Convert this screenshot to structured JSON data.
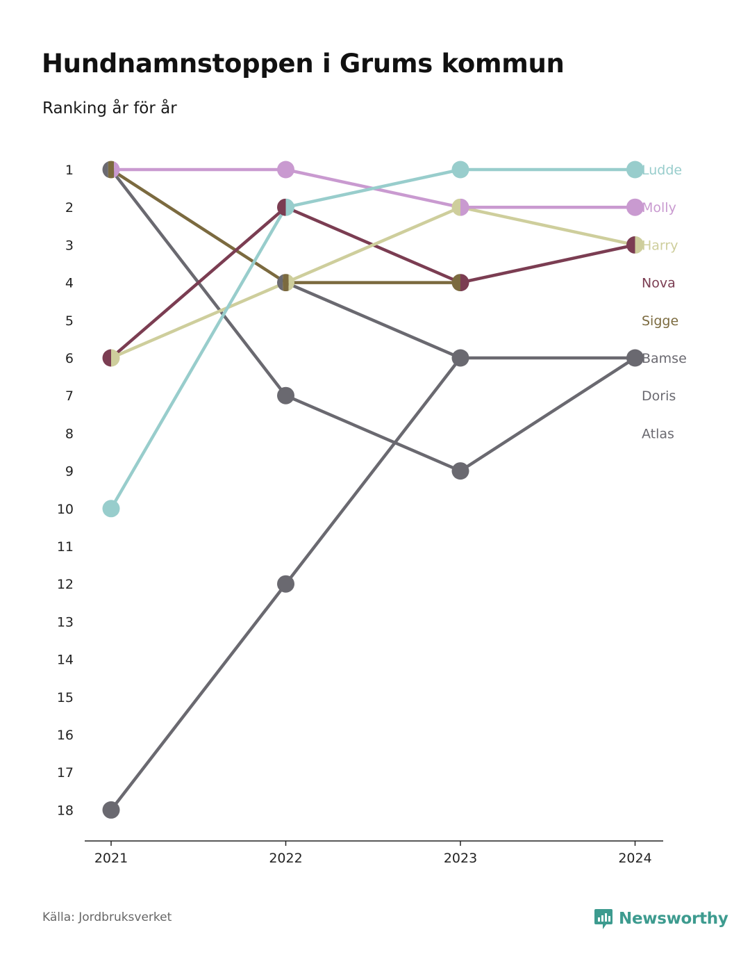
{
  "title": "Hundnamnstoppen i Grums kommun",
  "subtitle": "Ranking år för år",
  "source": "Källa: Jordbruksverket",
  "brand": {
    "name": "Newsworthy",
    "icon": "newsworthy-logo-icon",
    "color": "#3d9b8f"
  },
  "chart_data": {
    "type": "line",
    "x": [
      "2021",
      "2022",
      "2023",
      "2024"
    ],
    "y_ticks": [
      "1",
      "2",
      "3",
      "4",
      "5",
      "6",
      "7",
      "8",
      "9",
      "10",
      "11",
      "12",
      "13",
      "14",
      "15",
      "16",
      "17",
      "18"
    ],
    "ylim": [
      1,
      18
    ],
    "y_inverted": true,
    "grid": false,
    "legend": "right, end labels",
    "series": [
      {
        "name": "Atlas",
        "color": "#6a6970",
        "values": [
          18,
          12,
          6,
          6
        ]
      },
      {
        "name": "Doris",
        "color": "#6a6970",
        "values": [
          1,
          7,
          9,
          6
        ]
      },
      {
        "name": "Bamse",
        "color": "#6a6970",
        "values": [
          null,
          4,
          6,
          null
        ]
      },
      {
        "name": "Sigge",
        "color": "#7b6a3f",
        "values": [
          1,
          4,
          4,
          null
        ]
      },
      {
        "name": "Nova",
        "color": "#7b3d52",
        "values": [
          6,
          2,
          4,
          3
        ]
      },
      {
        "name": "Harry",
        "color": "#cece9c",
        "values": [
          6,
          4,
          2,
          3
        ]
      },
      {
        "name": "Molly",
        "color": "#c99ad0",
        "values": [
          1,
          1,
          2,
          2
        ]
      },
      {
        "name": "Ludde",
        "color": "#98cdcc",
        "values": [
          10,
          2,
          1,
          1
        ]
      }
    ],
    "end_labels": [
      {
        "name": "Ludde",
        "rank": 1,
        "color": "#98cdcc"
      },
      {
        "name": "Molly",
        "rank": 2,
        "color": "#c99ad0"
      },
      {
        "name": "Harry",
        "rank": 3,
        "color": "#cece9c"
      },
      {
        "name": "Nova",
        "rank": 4,
        "color": "#7b3d52"
      },
      {
        "name": "Sigge",
        "rank": 5,
        "color": "#7b6a3f"
      },
      {
        "name": "Bamse",
        "rank": 6,
        "color": "#6a6970"
      },
      {
        "name": "Doris",
        "rank": 7,
        "color": "#6a6970"
      },
      {
        "name": "Atlas",
        "rank": 8,
        "color": "#6a6970"
      }
    ]
  }
}
